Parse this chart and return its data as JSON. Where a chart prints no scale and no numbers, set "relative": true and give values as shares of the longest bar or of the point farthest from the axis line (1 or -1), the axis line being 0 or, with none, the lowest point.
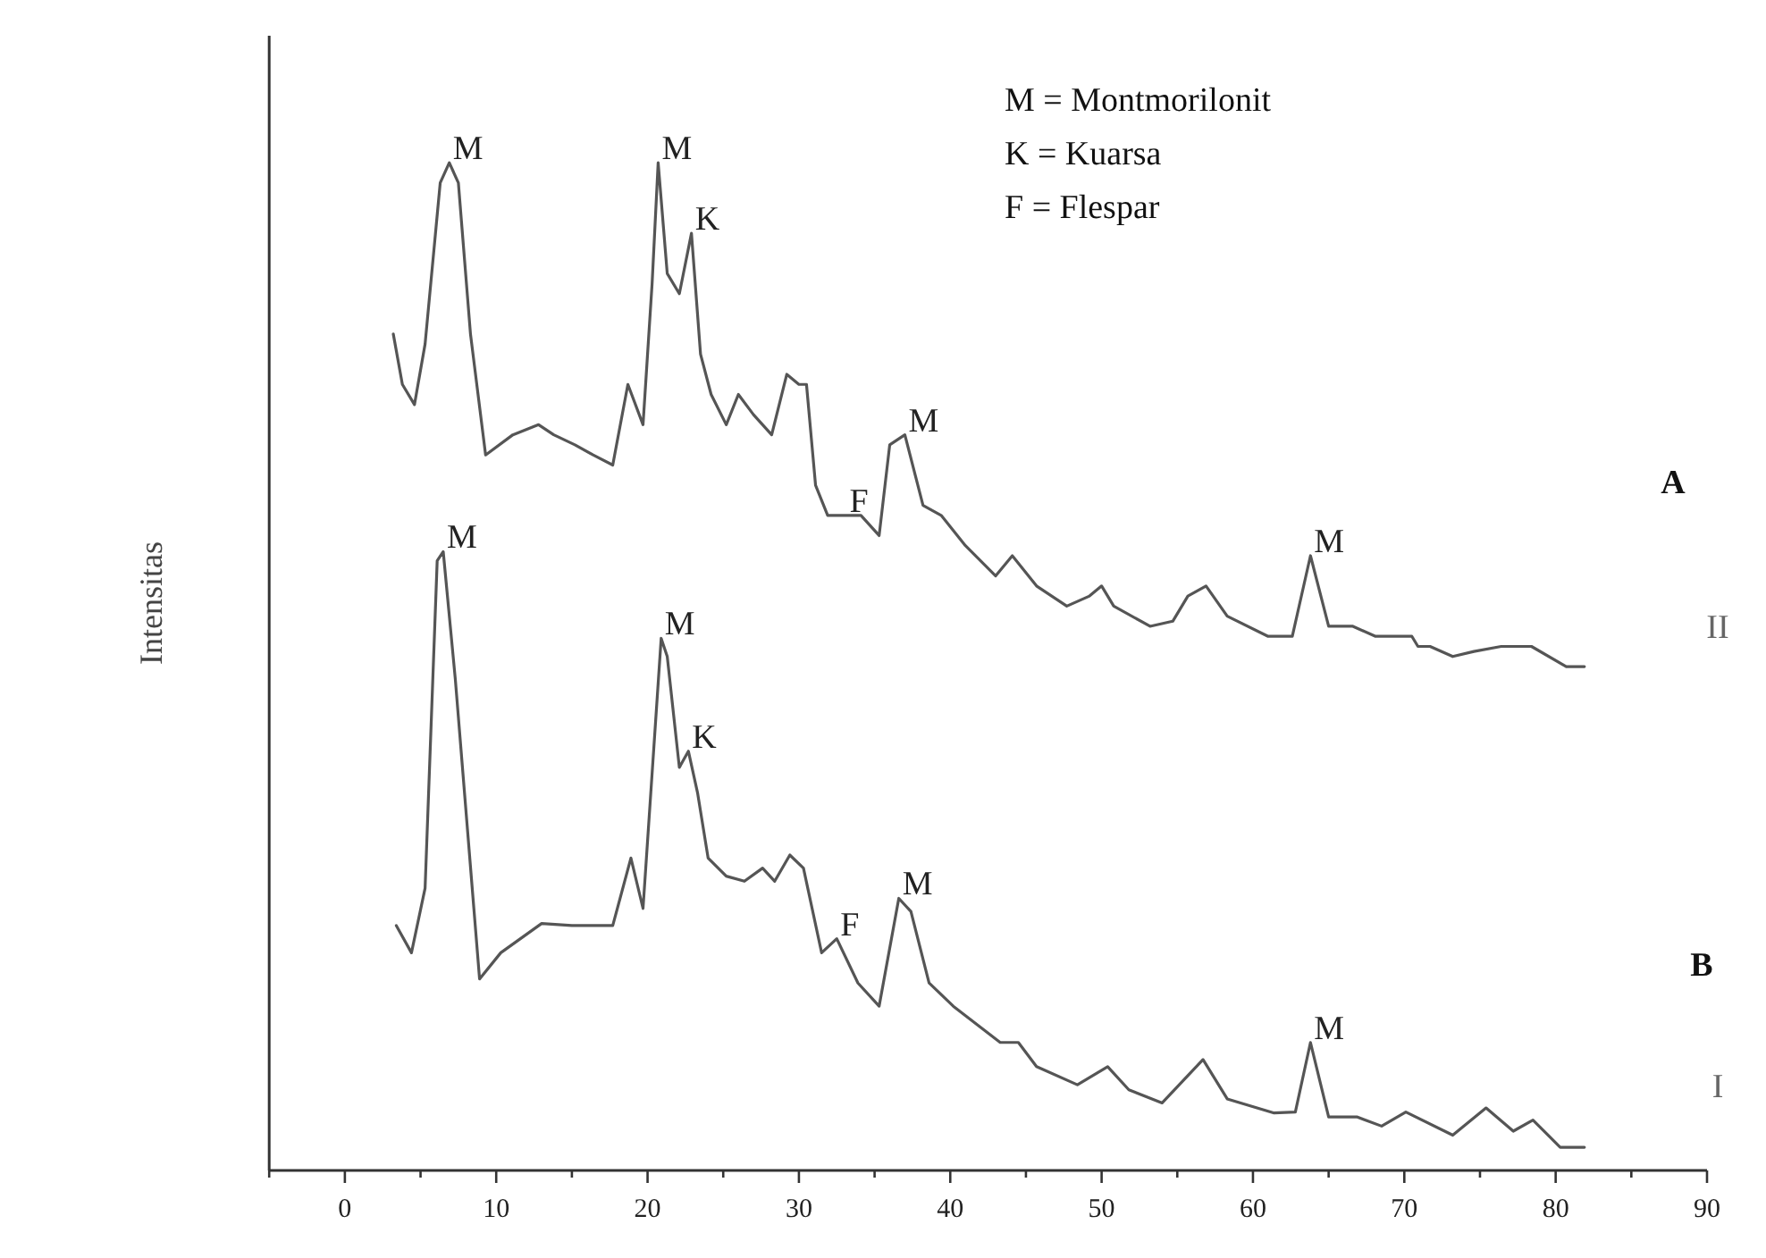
{
  "chart_data": {
    "type": "line",
    "relative": true,
    "ylabel": "Intensitas",
    "xlim": [
      -5,
      90
    ],
    "xticks": [
      {
        "value": -5,
        "label": null
      },
      0,
      {
        "value": 5,
        "label": null
      },
      10,
      {
        "value": 15,
        "label": null
      },
      20,
      {
        "value": 25,
        "label": null
      },
      30,
      {
        "value": 35,
        "label": null
      },
      40,
      {
        "value": 45,
        "label": null
      },
      50,
      {
        "value": 55,
        "label": null
      },
      60,
      {
        "value": 65,
        "label": null
      },
      70,
      {
        "value": 75,
        "label": null
      },
      80,
      {
        "value": 85,
        "label": null
      },
      90
    ],
    "marker": "none",
    "line_style": "solid",
    "series": [
      {
        "color": "#555555",
        "x": [
          3.2,
          3.8,
          4.6,
          5.3,
          6.3,
          6.9,
          7.5,
          8.3,
          9.3,
          11.1,
          12.8,
          13.8,
          15.2,
          16.4,
          17.7,
          18.7,
          19.7,
          20.3,
          20.7,
          21.3,
          22.1,
          22.9,
          23.5,
          24.2,
          25.2,
          26.0,
          27.0,
          28.2,
          29.2,
          30.0,
          30.5,
          31.1,
          31.9,
          33.1,
          34.1,
          35.3,
          36.0,
          37.0,
          38.2,
          39.4,
          41.0,
          43.0,
          44.1,
          45.7,
          47.7,
          49.2,
          50.0,
          50.8,
          53.2,
          54.7,
          55.7,
          56.9,
          58.3,
          61.0,
          62.6,
          63.8,
          65.0,
          66.6,
          68.1,
          70.5,
          70.9,
          71.7,
          73.2,
          74.6,
          76.4,
          78.4,
          80.7,
          81.9
        ],
        "values": [
          0.83,
          0.78,
          0.76,
          0.82,
          0.98,
          1.0,
          0.98,
          0.83,
          0.71,
          0.73,
          0.74,
          0.73,
          0.72,
          0.71,
          0.7,
          0.78,
          0.74,
          0.88,
          1.0,
          0.89,
          0.87,
          0.93,
          0.81,
          0.77,
          0.74,
          0.77,
          0.75,
          0.73,
          0.79,
          0.78,
          0.78,
          0.68,
          0.65,
          0.65,
          0.65,
          0.63,
          0.72,
          0.73,
          0.66,
          0.65,
          0.62,
          0.59,
          0.61,
          0.58,
          0.56,
          0.57,
          0.58,
          0.56,
          0.54,
          0.545,
          0.57,
          0.58,
          0.55,
          0.53,
          0.53,
          0.61,
          0.54,
          0.54,
          0.53,
          0.53,
          0.52,
          0.52,
          0.51,
          0.515,
          0.52,
          0.52,
          0.5,
          0.5
        ]
      },
      {
        "color": "#555555",
        "x": [
          3.4,
          4.4,
          5.3,
          6.1,
          6.5,
          7.3,
          8.9,
          10.3,
          13.0,
          15.0,
          17.7,
          18.9,
          19.7,
          20.9,
          21.3,
          22.1,
          22.7,
          23.3,
          24.0,
          25.2,
          26.4,
          27.6,
          28.4,
          29.4,
          30.3,
          31.5,
          32.5,
          33.9,
          35.3,
          36.6,
          37.4,
          38.6,
          40.2,
          43.3,
          44.5,
          45.7,
          48.4,
          50.4,
          51.8,
          54.0,
          56.7,
          58.3,
          61.4,
          62.8,
          63.8,
          65.0,
          66.9,
          68.5,
          70.1,
          73.2,
          75.4,
          77.2,
          78.5,
          80.3,
          81.9
        ],
        "values": [
          0.243,
          0.216,
          0.28,
          0.605,
          0.614,
          0.487,
          0.19,
          0.216,
          0.245,
          0.243,
          0.243,
          0.31,
          0.26,
          0.528,
          0.51,
          0.4,
          0.416,
          0.375,
          0.31,
          0.292,
          0.287,
          0.3,
          0.287,
          0.313,
          0.3,
          0.216,
          0.23,
          0.186,
          0.163,
          0.27,
          0.257,
          0.186,
          0.163,
          0.127,
          0.127,
          0.103,
          0.085,
          0.103,
          0.08,
          0.067,
          0.11,
          0.071,
          0.057,
          0.058,
          0.127,
          0.053,
          0.053,
          0.044,
          0.058,
          0.035,
          0.062,
          0.039,
          0.05,
          0.023,
          0.023
        ]
      }
    ],
    "annotations": [
      "M = Montmorilonit",
      "K = Kuarsa",
      "F = Flespar",
      {
        "text": "M",
        "x": 6.9,
        "y": 1.0
      },
      {
        "text": "M",
        "x": 20.7,
        "y": 1.0
      },
      {
        "text": "K",
        "x": 22.9,
        "y": 0.93
      },
      {
        "text": "F",
        "x": 33.1,
        "y": 0.65
      },
      {
        "text": "M",
        "x": 37.0,
        "y": 0.73
      },
      {
        "text": "M",
        "x": 63.8,
        "y": 0.61
      },
      "A",
      "II",
      {
        "text": "M",
        "x": 6.5,
        "y": 0.614
      },
      {
        "text": "M",
        "x": 20.9,
        "y": 0.528
      },
      {
        "text": "K",
        "x": 22.7,
        "y": 0.416
      },
      {
        "text": "F",
        "x": 32.5,
        "y": 0.23
      },
      {
        "text": "M",
        "x": 36.6,
        "y": 0.27
      },
      {
        "text": "M",
        "x": 63.8,
        "y": 0.127
      },
      "B",
      "I"
    ]
  }
}
